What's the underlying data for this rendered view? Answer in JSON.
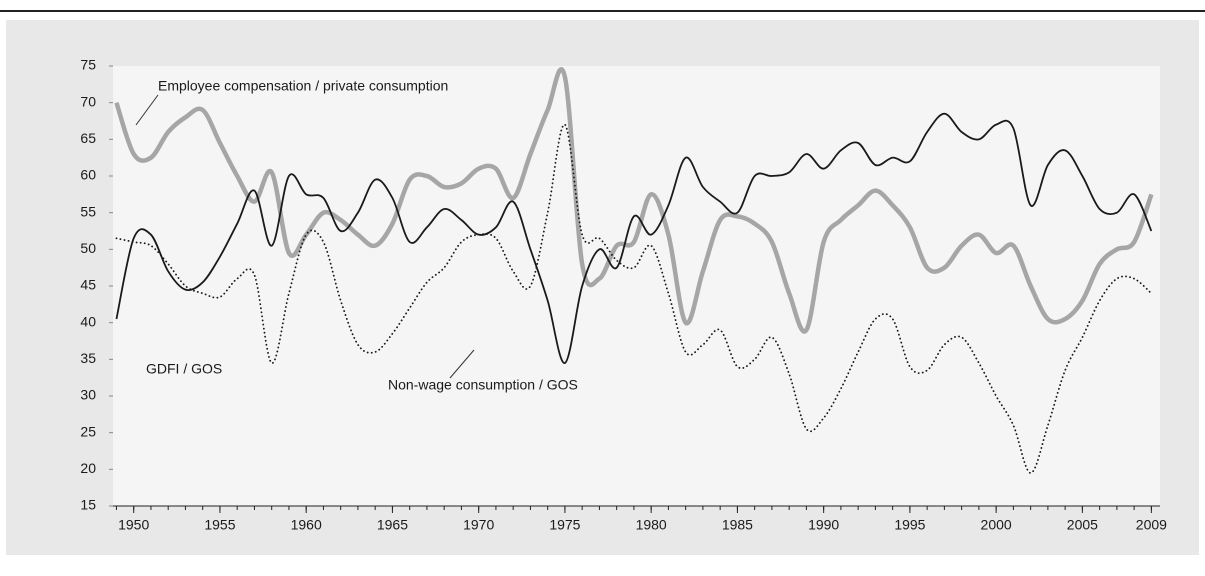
{
  "chart_data": {
    "type": "line",
    "annotations": [
      "Employee compensation / private consumption",
      "GDFI / GOS",
      "Non-wage consumption / GOS"
    ],
    "x": [
      1949,
      1950,
      1951,
      1952,
      1953,
      1954,
      1955,
      1956,
      1957,
      1958,
      1959,
      1960,
      1961,
      1962,
      1963,
      1964,
      1965,
      1966,
      1967,
      1968,
      1969,
      1970,
      1971,
      1972,
      1973,
      1974,
      1975,
      1976,
      1977,
      1978,
      1979,
      1980,
      1981,
      1982,
      1983,
      1984,
      1985,
      1986,
      1987,
      1988,
      1989,
      1990,
      1991,
      1992,
      1993,
      1994,
      1995,
      1996,
      1997,
      1998,
      1999,
      2000,
      2001,
      2002,
      2003,
      2004,
      2005,
      2006,
      2007,
      2008,
      2009
    ],
    "series": [
      {
        "name": "Employee compensation / private consumption",
        "color": "#a6a6a6",
        "style": "solid",
        "width": 4.5,
        "values": [
          70,
          63,
          62.5,
          66,
          68,
          69,
          64.5,
          60,
          56.5,
          60.5,
          49.5,
          52,
          55,
          54,
          52,
          50.5,
          53.5,
          59.5,
          60,
          58.5,
          59,
          61,
          61,
          57,
          63,
          69,
          73.5,
          48,
          46,
          50.5,
          51,
          57.5,
          52,
          40,
          47,
          54,
          54.5,
          53.5,
          51,
          44,
          39,
          51,
          54,
          56,
          58,
          56,
          53,
          47.5,
          47.5,
          50.5,
          52,
          49.5,
          50.5,
          45,
          40.5,
          40.5,
          43,
          48,
          50,
          51,
          57.5
        ]
      },
      {
        "name": "Non-wage consumption / GOS",
        "color": "#1a1a1a",
        "style": "solid",
        "width": 1.8,
        "values": [
          40.5,
          51.5,
          52,
          47,
          44.5,
          45.5,
          49,
          53.5,
          58,
          50.5,
          60,
          57.5,
          57,
          52.5,
          55,
          59.5,
          57,
          51,
          53,
          55.5,
          54,
          52,
          53,
          56.5,
          50,
          43,
          34.5,
          45,
          50,
          47.5,
          54.5,
          52,
          56,
          62.5,
          58.5,
          56.5,
          55,
          60,
          60,
          60.5,
          63,
          61,
          63.5,
          64.5,
          61.5,
          62.5,
          62,
          66,
          68.5,
          66,
          65,
          67,
          66.5,
          56,
          61.5,
          63.5,
          60,
          55.5,
          55,
          57.5,
          52.5
        ]
      },
      {
        "name": "GDFI / GOS",
        "color": "#1a1a1a",
        "style": "dotted",
        "width": 1.8,
        "values": [
          51.5,
          51,
          50.5,
          48,
          45,
          44,
          43.5,
          46,
          46.5,
          34.5,
          44,
          52,
          51,
          43,
          37,
          36,
          38.5,
          42,
          45.5,
          47.5,
          51,
          52,
          51.5,
          47,
          45,
          55,
          67,
          52,
          51.5,
          48.5,
          47.5,
          50.5,
          44,
          36,
          37,
          39,
          34,
          35,
          38,
          33,
          25.5,
          27,
          31,
          36,
          40.5,
          40.5,
          34,
          33.5,
          37,
          38,
          34.5,
          30,
          26,
          19.5,
          26,
          33.5,
          38,
          43,
          46,
          46,
          44
        ]
      }
    ],
    "xlim": [
      1948.8,
      2009.5
    ],
    "xticks": [
      1950,
      1955,
      1960,
      1965,
      1970,
      1975,
      1980,
      1985,
      1990,
      1995,
      2000,
      2005,
      2009
    ],
    "ylim": [
      15,
      75
    ],
    "yticks": [
      15,
      20,
      25,
      30,
      35,
      40,
      45,
      50,
      55,
      60,
      65,
      70,
      75
    ]
  }
}
